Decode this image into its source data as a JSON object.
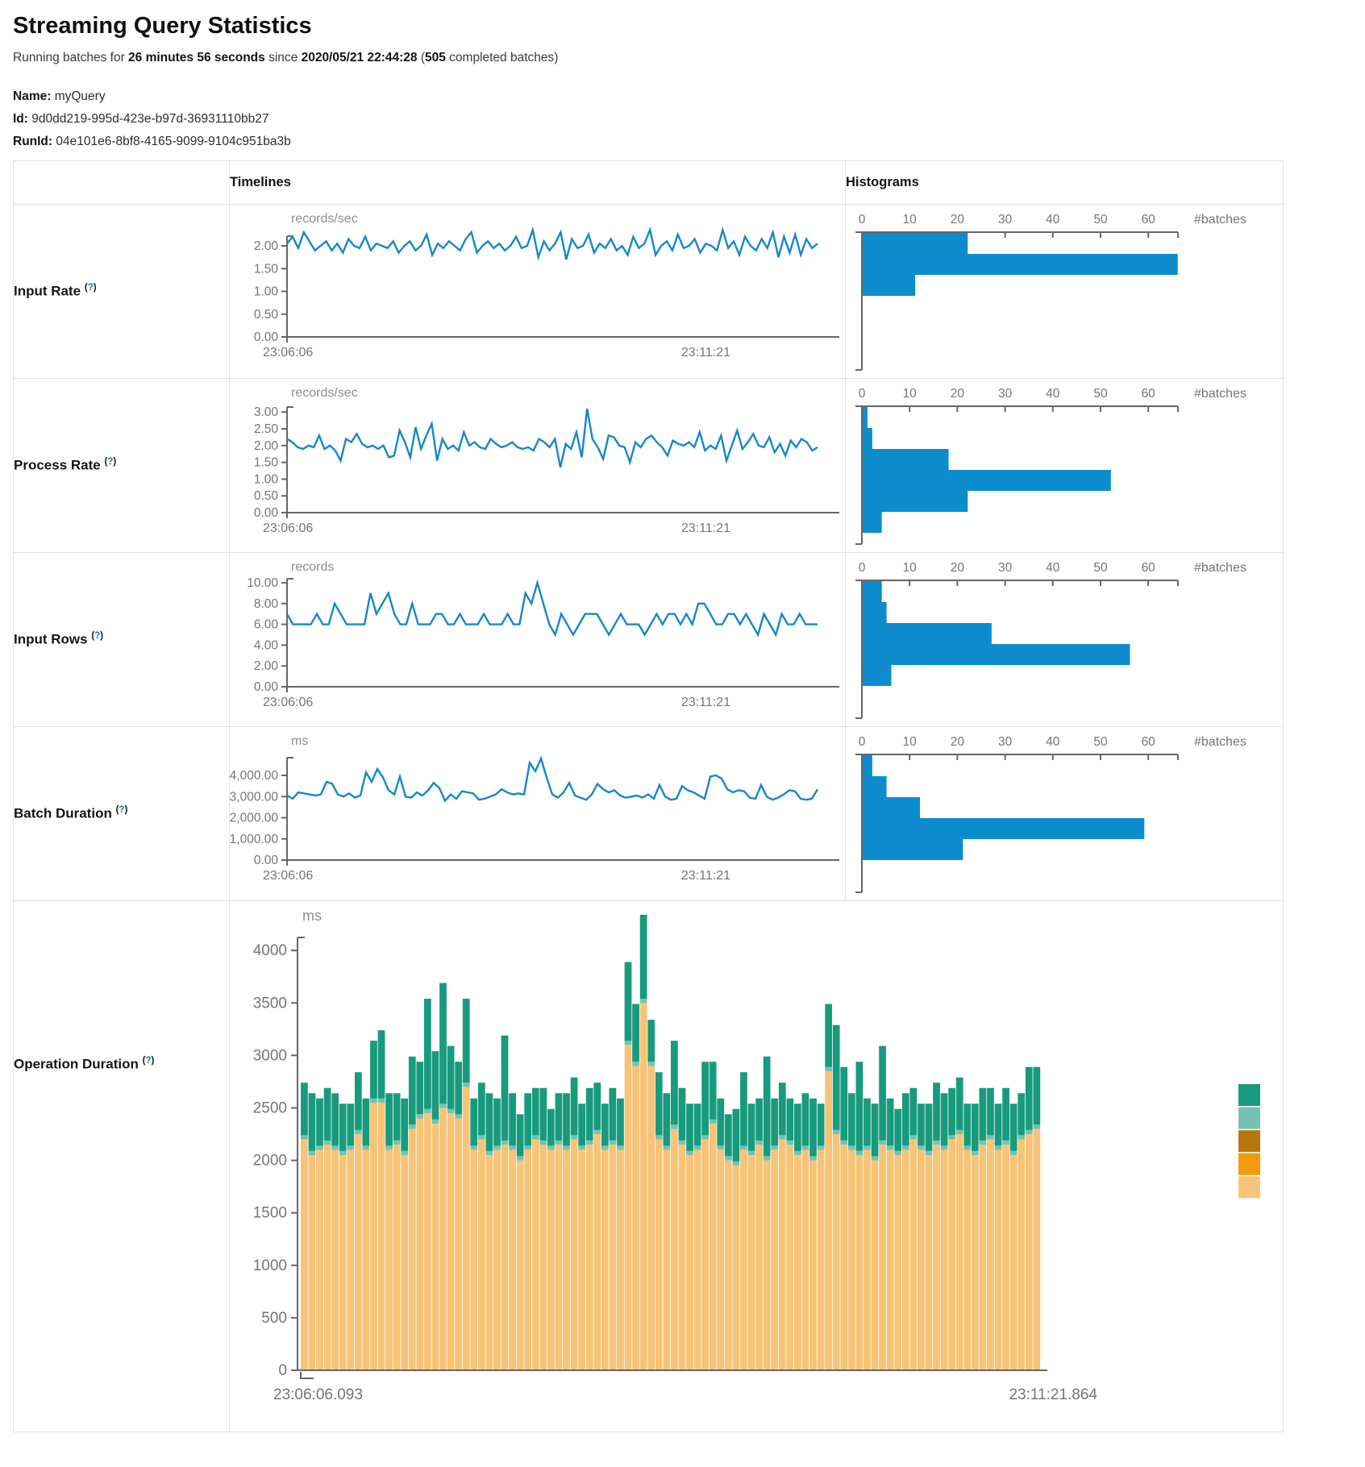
{
  "header": {
    "title": "Streaming Query Statistics",
    "running_prefix": "Running batches for ",
    "duration": "26 minutes 56 seconds",
    "since": " since ",
    "start_time": "2020/05/21 22:44:28",
    "paren_open": " (",
    "batches": "505",
    "batches_suffix": " completed batches)",
    "name_label": "Name:",
    "name": "myQuery",
    "id_label": "Id:",
    "id": "9d0dd219-995d-423e-b97d-36931110bb27",
    "runid_label": "RunId:",
    "runid": "04e101e6-8bf8-4165-9099-9104c951ba3b"
  },
  "table": {
    "col_timelines": "Timelines",
    "col_histograms": "Histograms",
    "help_open": "(",
    "help_q": "?",
    "help_close": ")",
    "rows": [
      {
        "label": "Input Rate"
      },
      {
        "label": "Process Rate"
      },
      {
        "label": "Input Rows"
      },
      {
        "label": "Batch Duration"
      },
      {
        "label": "Operation Duration"
      }
    ]
  },
  "colors": {
    "line_blue": "#1787c9",
    "hist_blue": "#0d8ccd",
    "axis_gray": "#666666",
    "tick_text": "#757575",
    "unit_text": "#8e8e8e",
    "green": "#189a7d",
    "light_teal": "#74c3b2",
    "dark_orange": "#b8770e",
    "orange": "#f39a0f",
    "tan": "#f7c477"
  },
  "chart_data": [
    {
      "row": "input-rate",
      "timeline": {
        "type": "line",
        "title": "Input Rate timeline",
        "unit": "records/sec",
        "x_start": "23:06:06",
        "x_end": "23:11:21",
        "ytick_labels": [
          "0.00",
          "0.50",
          "1.00",
          "1.50",
          "2.00"
        ],
        "ytick_step": 0.5,
        "values": [
          2.05,
          2.2,
          1.95,
          2.3,
          2.1,
          1.9,
          2.0,
          2.1,
          1.9,
          2.05,
          1.85,
          2.15,
          2.0,
          1.95,
          2.2,
          1.9,
          2.05,
          2.0,
          1.95,
          2.1,
          1.85,
          2.0,
          2.1,
          1.9,
          2.0,
          2.25,
          1.8,
          2.05,
          1.95,
          2.1,
          2.0,
          1.9,
          2.15,
          2.3,
          1.85,
          2.0,
          2.1,
          1.95,
          2.05,
          1.9,
          2.0,
          2.2,
          1.95,
          2.0,
          2.35,
          1.75,
          2.1,
          1.9,
          2.05,
          2.3,
          1.7,
          2.15,
          1.95,
          2.0,
          2.25,
          1.85,
          2.05,
          1.95,
          2.15,
          1.9,
          2.0,
          1.8,
          2.2,
          1.95,
          2.05,
          2.35,
          1.8,
          2.0,
          2.1,
          1.9,
          2.25,
          1.95,
          2.0,
          2.15,
          1.85,
          2.05,
          2.0,
          1.9,
          2.35,
          1.95,
          2.1,
          1.8,
          2.2,
          2.0,
          1.9,
          2.15,
          1.95,
          2.3,
          1.75,
          2.2,
          1.85,
          2.25,
          1.8,
          2.15,
          1.95,
          2.05
        ]
      },
      "histogram": {
        "type": "hbar",
        "title": "Input Rate histogram",
        "xlabel": "#batches",
        "xticks": [
          0,
          10,
          20,
          30,
          40,
          50,
          60
        ],
        "values": [
          22,
          66,
          11
        ]
      }
    },
    {
      "row": "process-rate",
      "timeline": {
        "type": "line",
        "title": "Process Rate timeline",
        "unit": "records/sec",
        "x_start": "23:06:06",
        "x_end": "23:11:21",
        "ytick_labels": [
          "0.00",
          "0.50",
          "1.00",
          "1.50",
          "2.00",
          "2.50",
          "3.00"
        ],
        "ytick_step": 0.5,
        "values": [
          2.2,
          2.1,
          1.95,
          1.9,
          2.0,
          1.95,
          2.3,
          1.9,
          2.0,
          1.85,
          1.55,
          2.2,
          2.1,
          2.35,
          2.05,
          1.95,
          2.0,
          1.9,
          2.0,
          1.65,
          1.7,
          2.45,
          2.1,
          1.65,
          2.55,
          1.9,
          2.3,
          2.65,
          1.55,
          2.2,
          1.9,
          2.0,
          1.85,
          2.4,
          2.0,
          2.1,
          1.95,
          1.9,
          2.2,
          2.05,
          1.95,
          2.0,
          2.1,
          1.95,
          1.9,
          1.95,
          1.85,
          2.2,
          2.1,
          1.95,
          2.2,
          1.35,
          2.05,
          1.9,
          2.4,
          1.65,
          3.1,
          2.2,
          1.95,
          1.6,
          2.3,
          2.25,
          2.0,
          1.95,
          1.5,
          2.1,
          1.95,
          2.2,
          2.3,
          2.1,
          1.95,
          1.7,
          2.15,
          2.05,
          2.0,
          2.1,
          1.95,
          2.4,
          1.85,
          2.0,
          1.9,
          2.3,
          1.55,
          2.0,
          2.45,
          1.9,
          2.1,
          2.35,
          2.0,
          1.95,
          2.25,
          1.8,
          2.05,
          1.7,
          2.15,
          1.95,
          2.2,
          2.1,
          1.85,
          1.95
        ]
      },
      "histogram": {
        "type": "hbar",
        "title": "Process Rate histogram",
        "xlabel": "#batches",
        "xticks": [
          0,
          10,
          20,
          30,
          40,
          50,
          60
        ],
        "values": [
          1,
          2,
          18,
          52,
          22,
          4
        ]
      }
    },
    {
      "row": "input-rows",
      "timeline": {
        "type": "line",
        "title": "Input Rows timeline",
        "unit": "records",
        "x_start": "23:06:06",
        "x_end": "23:11:21",
        "ytick_labels": [
          "0.00",
          "2.00",
          "4.00",
          "6.00",
          "8.00",
          "10.00"
        ],
        "ytick_step": 2,
        "values": [
          7,
          6,
          6,
          6,
          6,
          7,
          6,
          6,
          8,
          7,
          6,
          6,
          6,
          6,
          9,
          7,
          8,
          9,
          7,
          6,
          6,
          8,
          6,
          6,
          6,
          7,
          7,
          6,
          6,
          7,
          6,
          6,
          6,
          7,
          6,
          6,
          6,
          7,
          6,
          6,
          9,
          8,
          10,
          8,
          6,
          5,
          7,
          6,
          5,
          6,
          7,
          7,
          7,
          6,
          5,
          6,
          7,
          6,
          6,
          6,
          5,
          6,
          7,
          6,
          7,
          7,
          6,
          7,
          6,
          8,
          8,
          7,
          6,
          6,
          7,
          7,
          6,
          7,
          6,
          5,
          7,
          6,
          5,
          7,
          6,
          6,
          7,
          6,
          6,
          6
        ]
      },
      "histogram": {
        "type": "hbar",
        "title": "Input Rows histogram",
        "xlabel": "#batches",
        "xticks": [
          0,
          10,
          20,
          30,
          40,
          50,
          60
        ],
        "values": [
          4,
          5,
          27,
          56,
          6
        ]
      }
    },
    {
      "row": "batch-duration",
      "timeline": {
        "type": "line",
        "title": "Batch Duration timeline",
        "unit": "ms",
        "x_start": "23:06:06",
        "x_end": "23:11:21",
        "ytick_labels": [
          "0.00",
          "1,000.00",
          "2,000.00",
          "3,000.00",
          "4,000.00"
        ],
        "ytick_step": 1000,
        "values": [
          3050,
          2900,
          3200,
          3150,
          3100,
          3050,
          3100,
          3700,
          3600,
          3100,
          3000,
          3150,
          2950,
          3050,
          4150,
          3700,
          4300,
          3900,
          3300,
          3100,
          3950,
          3000,
          2950,
          3200,
          3050,
          3300,
          3650,
          3400,
          2800,
          3100,
          2900,
          3250,
          3200,
          3150,
          2850,
          2900,
          3000,
          3100,
          3350,
          3200,
          3100,
          3150,
          3100,
          4600,
          4200,
          4800,
          3900,
          3100,
          2950,
          3200,
          3650,
          3050,
          2950,
          2850,
          3100,
          3600,
          3350,
          3200,
          3300,
          3050,
          2950,
          3000,
          3050,
          2950,
          3100,
          2900,
          3550,
          3000,
          2850,
          2900,
          3500,
          3300,
          3200,
          3050,
          2900,
          3950,
          4000,
          3850,
          3350,
          3200,
          3300,
          3250,
          2950,
          2900,
          3550,
          3000,
          2850,
          2950,
          3100,
          3300,
          3250,
          2900,
          2850,
          2900,
          3350
        ]
      },
      "histogram": {
        "type": "hbar",
        "title": "Batch Duration histogram",
        "xlabel": "#batches",
        "xticks": [
          0,
          10,
          20,
          30,
          40,
          50,
          60
        ],
        "values": [
          2,
          5,
          12,
          59,
          21
        ]
      }
    },
    {
      "row": "operation-duration",
      "timeline": {
        "type": "stacked-bar",
        "title": "Operation Duration stacked chart",
        "unit": "ms",
        "x_start": "23:06:06.093",
        "x_end": "23:11:21.864",
        "ytick_labels": [
          "0",
          "500",
          "1000",
          "1500",
          "2000",
          "2500",
          "3000",
          "3500",
          "4000"
        ],
        "ytick_step": 500,
        "series": [
          {
            "name": "segment-bottom",
            "color": "#f7c477",
            "values": [
              2200,
              2050,
              2100,
              2150,
              2100,
              2050,
              2100,
              2250,
              2100,
              2550,
              2550,
              2100,
              2150,
              2050,
              2300,
              2400,
              2450,
              2350,
              2500,
              2450,
              2400,
              2700,
              2100,
              2200,
              2050,
              2100,
              2150,
              2100,
              2000,
              2100,
              2200,
              2150,
              2100,
              2150,
              2100,
              2200,
              2100,
              2150,
              2250,
              2100,
              2150,
              2100,
              3100,
              2900,
              3500,
              2900,
              2200,
              2100,
              2300,
              2150,
              2050,
              2100,
              2200,
              2350,
              2100,
              2000,
              1950,
              2100,
              2050,
              2150,
              2000,
              2100,
              2200,
              2150,
              2050,
              2100,
              2000,
              2100,
              2850,
              2250,
              2150,
              2100,
              2050,
              2100,
              2000,
              2150,
              2100,
              2050,
              2100,
              2200,
              2100,
              2050,
              2150,
              2100,
              2200,
              2250,
              2100,
              2050,
              2150,
              2200,
              2100,
              2150,
              2050,
              2200,
              2250,
              2300
            ]
          },
          {
            "name": "segment-middle",
            "color": "#74c3b2",
            "values": [
              40,
              40,
              40,
              40,
              40,
              40,
              40,
              40,
              40,
              40,
              40,
              40,
              40,
              40,
              40,
              40,
              40,
              40,
              40,
              40,
              40,
              40,
              40,
              40,
              40,
              40,
              40,
              40,
              40,
              40,
              40,
              40,
              40,
              40,
              40,
              40,
              40,
              40,
              40,
              40,
              40,
              40,
              40,
              40,
              40,
              40,
              40,
              40,
              40,
              40,
              40,
              40,
              40,
              40,
              40,
              40,
              40,
              40,
              40,
              40,
              40,
              40,
              40,
              40,
              40,
              40,
              40,
              40,
              40,
              40,
              40,
              40,
              40,
              40,
              40,
              40,
              40,
              40,
              40,
              40,
              40,
              40,
              40,
              40,
              40,
              40,
              40,
              40,
              40,
              40,
              40,
              40,
              40,
              40,
              40,
              40
            ]
          },
          {
            "name": "segment-top",
            "color": "#189a7d",
            "values": [
              500,
              550,
              450,
              500,
              500,
              450,
              400,
              550,
              450,
              550,
              650,
              500,
              450,
              500,
              650,
              500,
              1050,
              650,
              1150,
              600,
              500,
              800,
              450,
              500,
              550,
              450,
              1000,
              500,
              400,
              500,
              450,
              500,
              350,
              450,
              500,
              550,
              400,
              500,
              450,
              400,
              500,
              450,
              750,
              550,
              800,
              400,
              600,
              500,
              800,
              500,
              450,
              400,
              700,
              550,
              450,
              400,
              500,
              700,
              450,
              400,
              950,
              450,
              500,
              400,
              450,
              500,
              550,
              400,
              600,
              1000,
              700,
              500,
              850,
              450,
              500,
              900,
              450,
              400,
              500,
              450,
              400,
              450,
              550,
              500,
              450,
              500,
              400,
              450,
              500,
              450,
              400,
              500,
              450,
              400,
              600,
              550
            ]
          }
        ],
        "legend_colors": [
          "#189a7d",
          "#74c3b2",
          "#b8770e",
          "#f39a0f",
          "#f7c477"
        ]
      }
    }
  ]
}
